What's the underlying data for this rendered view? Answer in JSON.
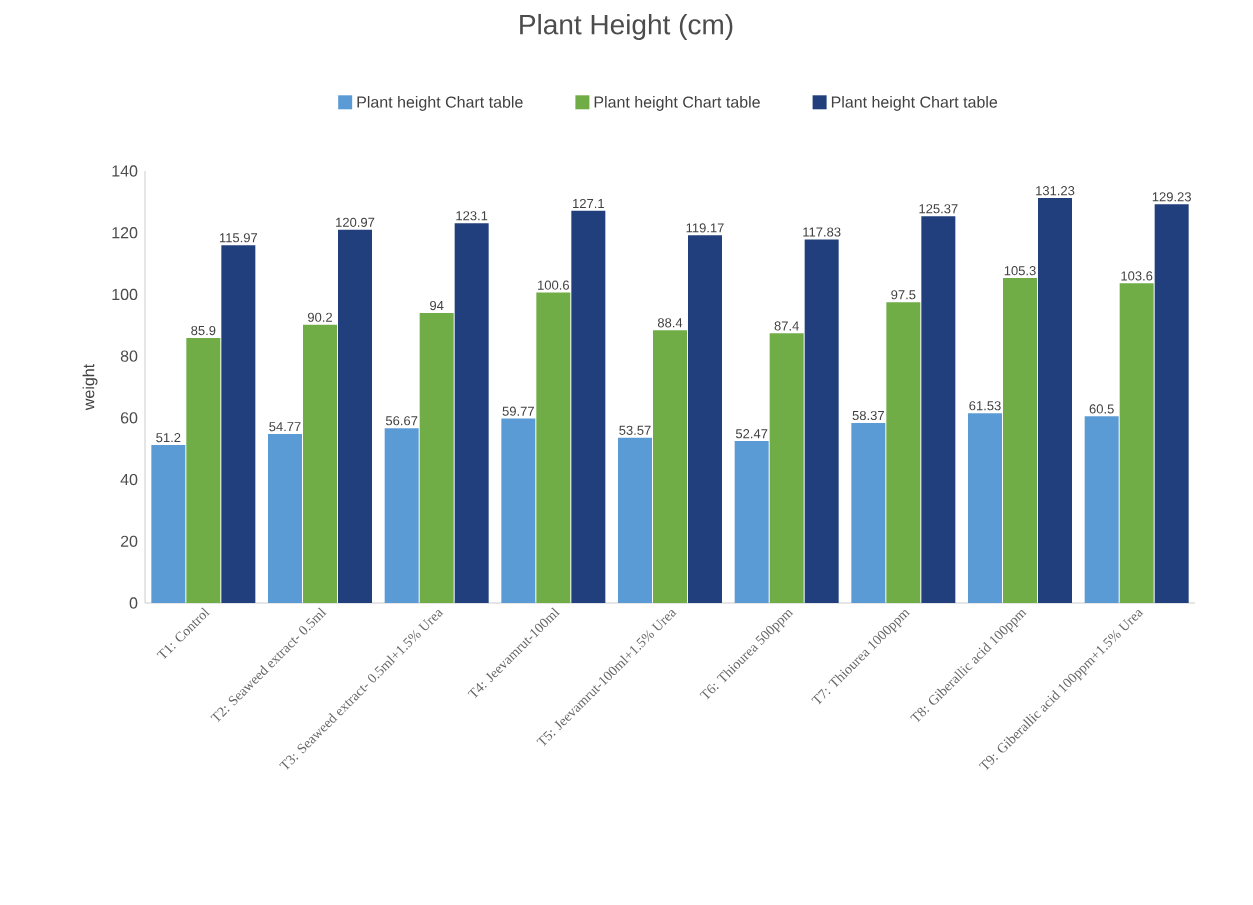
{
  "chart_data": {
    "type": "bar",
    "title": "Plant Height (cm)",
    "ylabel": "weight",
    "categories": [
      "T1: Control",
      "T2: Seaweed extract- 0.5ml",
      "T3: Seaweed extract- 0.5ml+1.5% Urea",
      "T4: Jeevamrut-100ml",
      "T5: Jeevamrut-100ml+1.5% Urea",
      "T6: Thiourea 500ppm",
      "T7: Thiourea 1000ppm",
      "T8: Giberallic acid 100ppm",
      "T9: Giberallic acid 100ppm+1.5% Urea"
    ],
    "series": [
      {
        "name": "Plant height Chart table",
        "color": "#5b9bd5",
        "values": [
          51.2,
          54.77,
          56.67,
          59.77,
          53.57,
          52.47,
          58.37,
          61.53,
          60.5
        ],
        "value_labels": [
          "51.2",
          "54.77",
          "56.67",
          "59.77",
          "53.57",
          "52.47",
          "58.37",
          "61.53",
          "60.5"
        ]
      },
      {
        "name": "Plant height Chart table",
        "color": "#70ad47",
        "values": [
          85.9,
          90.2,
          94,
          100.6,
          88.4,
          87.4,
          97.5,
          105.3,
          103.6
        ],
        "value_labels": [
          "85.9",
          "90.2",
          "94",
          "100.6",
          "88.4",
          "87.4",
          "97.5",
          "105.3",
          "103.6"
        ]
      },
      {
        "name": "Plant height Chart table",
        "color": "#203f7c",
        "values": [
          115.97,
          120.97,
          123.1,
          127.1,
          119.17,
          117.83,
          125.37,
          131.23,
          129.23
        ],
        "value_labels": [
          "115.97",
          "120.97",
          "123.1",
          "127.1",
          "119.17",
          "117.83",
          "125.37",
          "131.23",
          "129.23"
        ]
      }
    ],
    "ylim": [
      0,
      140
    ],
    "yticks": [
      0,
      20,
      40,
      60,
      80,
      100,
      120,
      140
    ],
    "grid": false,
    "legend": "top"
  }
}
